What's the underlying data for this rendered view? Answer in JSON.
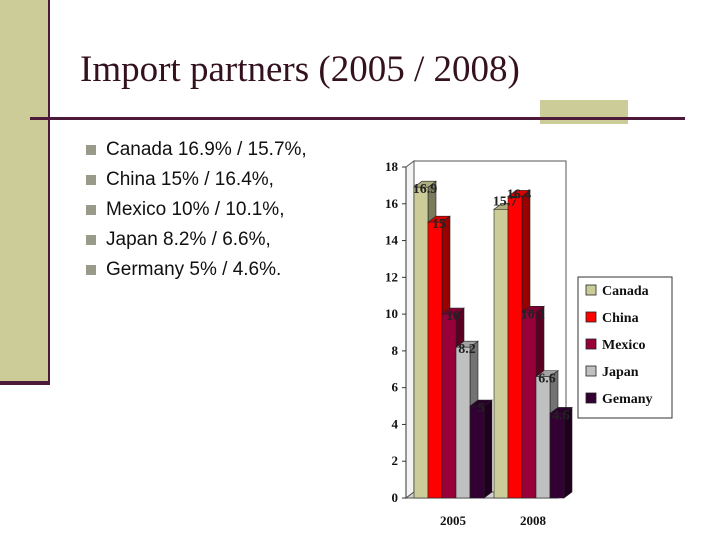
{
  "slide": {
    "title": "Import partners (2005 / 2008)",
    "bullets": [
      "Canada 16.9% / 15.7%,",
      "China 15% / 16.4%,",
      "Mexico 10% / 10.1%,",
      "Japan 8.2% / 6.6%,",
      "Germany 5% / 4.6%."
    ]
  },
  "colors": {
    "accent": "#cccc99",
    "line": "#4d1a3a"
  },
  "chart_data": {
    "type": "bar",
    "categories": [
      "2005",
      "2008"
    ],
    "series": [
      {
        "name": "Canada",
        "values": [
          16.9,
          15.7
        ],
        "color": "#cccc99"
      },
      {
        "name": "China",
        "values": [
          15,
          16.4
        ],
        "color": "#ff0000"
      },
      {
        "name": "Mexico",
        "values": [
          10,
          10.1
        ],
        "color": "#99003a"
      },
      {
        "name": "Japan",
        "values": [
          8.2,
          6.6
        ],
        "color": "#c0c0c0"
      },
      {
        "name": "Gemany",
        "values": [
          5,
          4.6
        ],
        "color": "#330033"
      }
    ],
    "data_labels": [
      [
        "16.9",
        "15",
        "10",
        "8.2",
        "5"
      ],
      [
        "15.7",
        "16.4",
        "10.1",
        "6.6",
        "4.6"
      ]
    ],
    "yticks": [
      "0",
      "2",
      "4",
      "6",
      "8",
      "10",
      "12",
      "14",
      "16",
      "18"
    ],
    "ylim": [
      0,
      18
    ],
    "legend_position": "right",
    "style": "3d-bar"
  }
}
